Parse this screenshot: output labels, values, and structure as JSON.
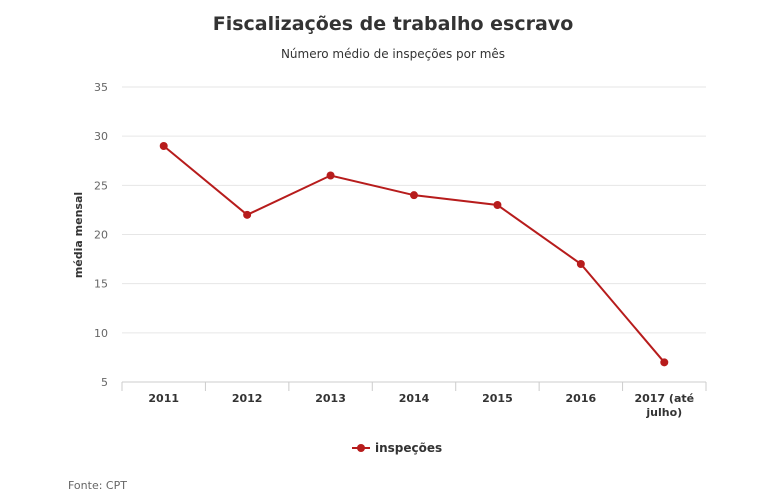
{
  "chart_data": {
    "type": "line",
    "title": "Fiscalizações de trabalho escravo",
    "subtitle": "Número médio de inspeções por mês",
    "ylabel": "média mensal",
    "xlabel": "",
    "categories": [
      "2011",
      "2012",
      "2013",
      "2014",
      "2015",
      "2016",
      "2017 (até julho)"
    ],
    "series": [
      {
        "name": "inspeções",
        "values": [
          29,
          22,
          26,
          24,
          23,
          17,
          7
        ],
        "color": "#b71c1c"
      }
    ],
    "ylim": [
      5,
      35
    ],
    "yticks": [
      5,
      10,
      15,
      20,
      25,
      30,
      35
    ],
    "grid": true,
    "legend": "bottom-center",
    "source": "Fonte: CPT"
  }
}
